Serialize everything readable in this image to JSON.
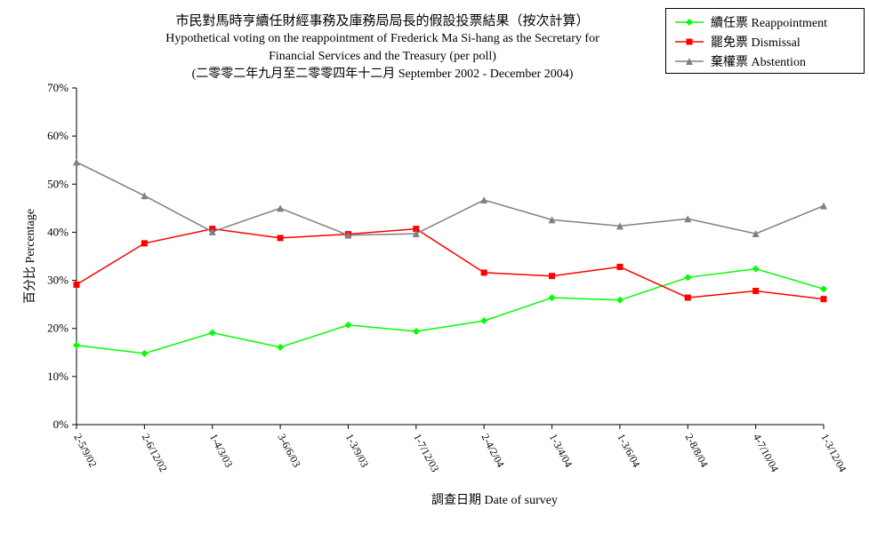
{
  "chart_data": {
    "type": "line",
    "title": "市民對馬時亨續任財經事務及庫務局局長的假設投票結果（按次計算）",
    "subtitle_lines": [
      "Hypothetical voting on the reappointment of  Frederick Ma Si-hang as the Secretary for",
      "Financial Services and the Treasury (per poll)",
      "(二零零二年九月至二零零四年十二月 September 2002 - December 2004)"
    ],
    "xlabel": "調查日期 Date of survey",
    "ylabel": "百分比 Percentage",
    "ylim": [
      0,
      70
    ],
    "y_ticks": [
      "0%",
      "10%",
      "20%",
      "30%",
      "40%",
      "50%",
      "60%",
      "70%"
    ],
    "grid": false,
    "legend_position": "top-right",
    "categories": [
      "2-5/9/02",
      "2-6/12/02",
      "1-4/3/03",
      "3-6/6/03",
      "1-3/9/03",
      "1-7/12/03",
      "2-4/2/04",
      "1-3/4/04",
      "1-3/6/04",
      "2-8/8/04",
      "4-7/10/04",
      "1-3/12/04"
    ],
    "series": [
      {
        "name": "續任票 Reappointment",
        "color": "#00ff00",
        "marker": "diamond",
        "values": [
          16.5,
          14.8,
          19.1,
          16.1,
          20.7,
          19.4,
          21.6,
          26.4,
          25.9,
          30.6,
          32.4,
          28.2
        ]
      },
      {
        "name": "罷免票 Dismissal",
        "color": "#ff0000",
        "marker": "square",
        "values": [
          29.1,
          37.7,
          40.7,
          38.8,
          39.6,
          40.7,
          31.6,
          30.9,
          32.8,
          26.4,
          27.8,
          26.1
        ]
      },
      {
        "name": "棄權票 Abstention",
        "color": "#808080",
        "marker": "triangle",
        "values": [
          54.6,
          47.6,
          40.1,
          45.0,
          39.4,
          39.7,
          46.7,
          42.6,
          41.3,
          42.8,
          39.7,
          45.5
        ]
      }
    ]
  }
}
